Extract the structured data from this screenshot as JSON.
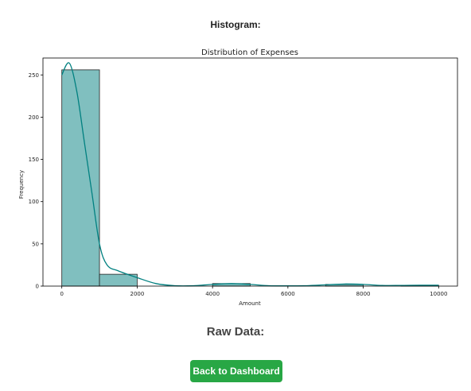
{
  "page": {
    "histogram_heading": "Histogram:",
    "raw_data_heading": "Raw Data:",
    "back_button_label": "Back to Dashboard"
  },
  "chart_data": {
    "type": "bar",
    "title": "Distribution of Expenses",
    "xlabel": "Amount",
    "ylabel": "Frequency",
    "bins": [
      {
        "from": 0,
        "to": 1000,
        "count": 256
      },
      {
        "from": 1000,
        "to": 2000,
        "count": 14
      },
      {
        "from": 2000,
        "to": 3000,
        "count": 0
      },
      {
        "from": 3000,
        "to": 4000,
        "count": 0
      },
      {
        "from": 4000,
        "to": 5000,
        "count": 3
      },
      {
        "from": 5000,
        "to": 6000,
        "count": 0
      },
      {
        "from": 6000,
        "to": 7000,
        "count": 0
      },
      {
        "from": 7000,
        "to": 8000,
        "count": 2
      },
      {
        "from": 8000,
        "to": 9000,
        "count": 0
      },
      {
        "from": 9000,
        "to": 10000,
        "count": 1
      }
    ],
    "kde": {
      "x": [
        0,
        200,
        400,
        600,
        800,
        1000,
        1200,
        1500,
        2000,
        2500,
        3000,
        3500,
        4000,
        4500,
        5000,
        5500,
        6000,
        6500,
        7000,
        7500,
        8000,
        8500,
        9000,
        9500,
        10000
      ],
      "y": [
        250,
        264,
        230,
        170,
        110,
        50,
        25,
        18,
        10,
        3,
        0.5,
        0.5,
        2,
        3,
        2,
        0.5,
        0.3,
        0.5,
        1.5,
        2.5,
        2,
        0.8,
        0.8,
        1,
        1
      ]
    },
    "x_ticks": [
      0,
      2000,
      4000,
      6000,
      8000,
      10000
    ],
    "y_ticks": [
      0,
      50,
      100,
      150,
      200,
      250
    ],
    "xlim": [
      -500,
      10500
    ],
    "ylim": [
      0,
      270
    ],
    "bar_color": "#80bfbf",
    "line_color": "#008080",
    "grid": false,
    "legend": "none"
  }
}
